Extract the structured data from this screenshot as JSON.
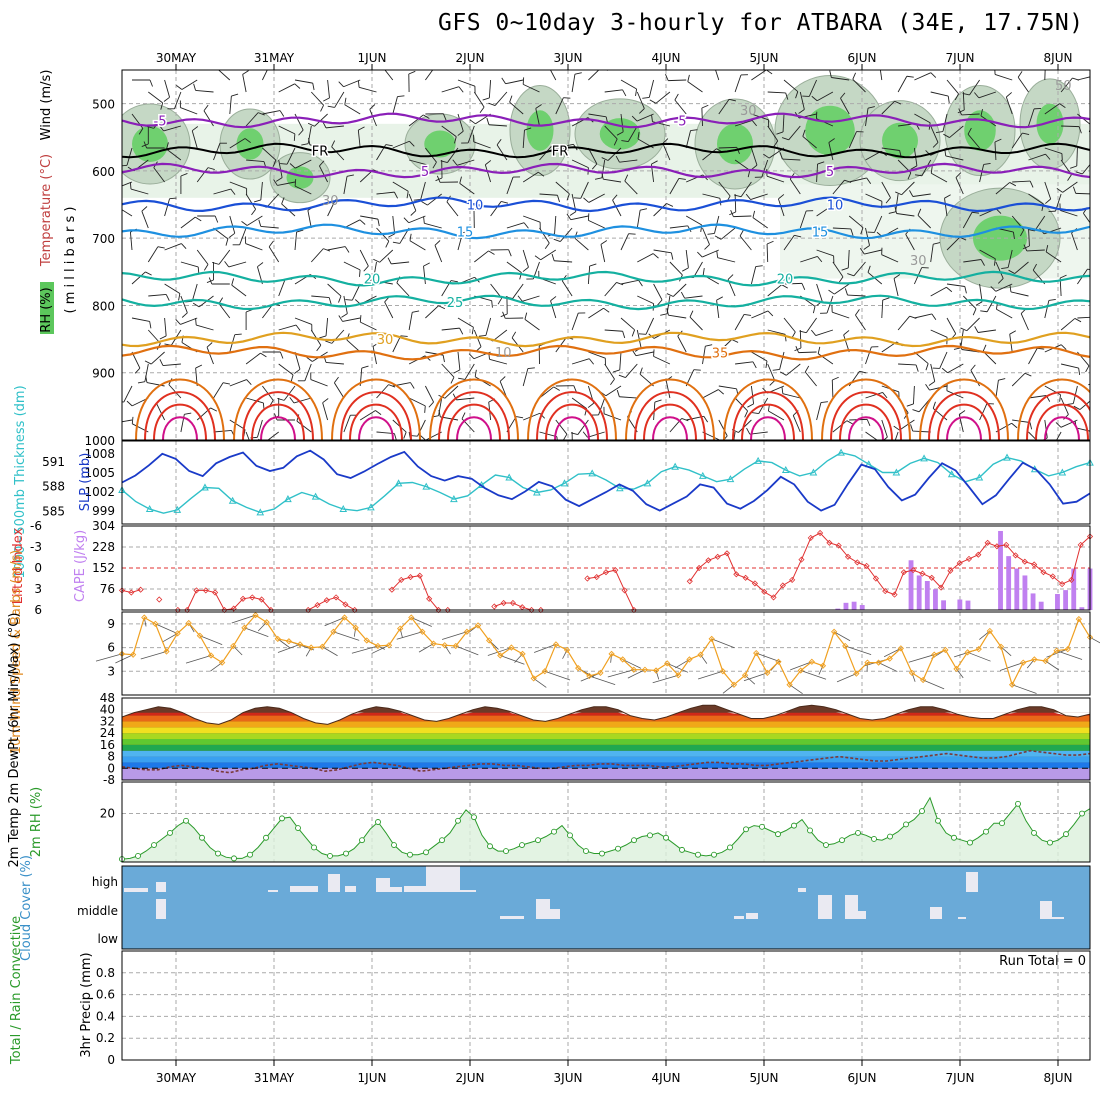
{
  "title": "GFS 0~10day 3-hourly for ATBARA (34E, 17.75N)",
  "dates": [
    "30MAY",
    "31MAY",
    "1JUN",
    "2JUN",
    "3JUN",
    "4JUN",
    "5JUN",
    "6JUN",
    "7JUN",
    "8JUN"
  ],
  "colors": {
    "purple": "#8a1fb8",
    "black": "#000000",
    "blue": "#1a4fd6",
    "lightblue": "#1e90e0",
    "teal": "#14b0a0",
    "orange": "#e0a020",
    "darkorange": "#e07010",
    "red": "#e03020",
    "magenta": "#d0108a",
    "slp": "#1a3ac8",
    "thick": "#30c0c8",
    "li": "#e03030",
    "cape": "#c080f0",
    "wind": "#f0a020",
    "rh": "#2a9a2a",
    "cloud": "#6aaad8"
  },
  "chart_data": [
    {
      "panel": "upper-air",
      "type": "contour",
      "ylabel_rh": "RH (%)",
      "ylabel_temp": "Temperature (°C)",
      "ylabel_wind": "Wind (m/s)",
      "ylabel_units": "( m i l l i b a r s )",
      "y_ticks": [
        "500",
        "600",
        "700",
        "800",
        "900",
        "1000"
      ],
      "ylim": [
        1000,
        450
      ],
      "isotherms": [
        {
          "label": "-5",
          "pressure": 525,
          "color": "purple"
        },
        {
          "label": "FR",
          "pressure": 570,
          "color": "black"
        },
        {
          "label": "5",
          "pressure": 600,
          "color": "purple"
        },
        {
          "label": "10",
          "pressure": 650,
          "color": "blue"
        },
        {
          "label": "15",
          "pressure": 690,
          "color": "lightblue"
        },
        {
          "label": "20",
          "pressure": 760,
          "color": "teal"
        },
        {
          "label": "25",
          "pressure": 795,
          "color": "teal"
        },
        {
          "label": "30",
          "pressure": 850,
          "color": "orange"
        },
        {
          "label": "35",
          "pressure": 870,
          "color": "darkorange"
        }
      ],
      "rh_labels": [
        "50",
        "30",
        "30",
        "30",
        "10"
      ]
    },
    {
      "panel": "slp-thickness",
      "type": "line",
      "ylabel_left": "1000~500mb Thickness (dm)",
      "ylabel_right": "SLP (mb)",
      "left_ticks": [
        "591",
        "588",
        "585"
      ],
      "right_ticks": [
        "1008",
        "1005",
        "1002",
        "999"
      ],
      "slp": [
        1003.5,
        1004.6,
        1006.2,
        1008,
        1007.2,
        1005.3,
        1004.5,
        1006.5,
        1007.5,
        1008.2,
        1006.1,
        1005.3,
        1005.8,
        1007.6,
        1008.5,
        1007.1,
        1004.8,
        1004.2,
        1005.2,
        1006.4,
        1007.5,
        1008.3,
        1006,
        1004.5,
        1003.8,
        1004.5,
        1004.1,
        1002.6,
        1001.5,
        1000.9,
        1002.1,
        1003.6,
        1002.9,
        1000.8,
        999.8,
        1000.9,
        1002,
        1003.2,
        1002.2,
        1000.1,
        999.1,
        1000.2,
        1001.3,
        1003.2,
        1002.7,
        1000.2,
        999.4,
        1000.6,
        1002.3,
        1004.4,
        1003.2,
        1000.5,
        999.1,
        1000,
        1003.3,
        1006.3,
        1005.6,
        1002.8,
        1000.7,
        1001.6,
        1004.2,
        1006.5,
        1005.4,
        1002.8,
        1000.1,
        1001.5,
        1004.1,
        1006.6,
        1005.5,
        1003.2,
        1000.2,
        1000.5,
        1001.8
      ],
      "thickness": [
        587.6,
        586.2,
        585.3,
        584.8,
        585.2,
        586.6,
        587.9,
        587.8,
        586.3,
        585.5,
        584.9,
        585.3,
        586.5,
        587.3,
        586.8,
        585.9,
        585.3,
        585.1,
        585.5,
        586.9,
        588.4,
        588.5,
        588,
        587.3,
        586.5,
        586.9,
        588.2,
        589.4,
        589.1,
        587.9,
        587.3,
        587.6,
        588.4,
        589.5,
        589.6,
        588.8,
        587.8,
        587.7,
        588.4,
        589.8,
        590.4,
        590,
        589.3,
        588.6,
        588.9,
        590.1,
        591.1,
        590.9,
        590,
        589.3,
        589.7,
        591.1,
        592.1,
        591.7,
        590.7,
        589.7,
        589.7,
        590.8,
        591.4,
        590.9,
        589.5,
        588.6,
        589.1,
        590.7,
        591.5,
        591.1,
        590.1,
        589.3,
        589.7,
        590.4,
        590.9
      ],
      "ylim_slp": [
        997,
        1010
      ],
      "ylim_thickness": [
        583.5,
        593.5
      ]
    },
    {
      "panel": "cape-li",
      "type": "bar+line",
      "ylabel_left": "Lifted Index",
      "ylabel_right": "CAPE (J/kg)",
      "li_ticks": [
        "-6",
        "-3",
        "0",
        "3",
        "6"
      ],
      "cape_ticks": [
        "304",
        "228",
        "152",
        "76"
      ],
      "li_range": [
        -6,
        6
      ],
      "cape_range": [
        0,
        304
      ],
      "lifted_index": [
        3.2,
        3.5,
        3.1,
        null,
        4.5,
        null,
        6,
        6,
        3.2,
        3.2,
        3.5,
        6,
        5.8,
        4.4,
        4.2,
        4.5,
        6,
        null,
        null,
        null,
        6,
        5.3,
        4.6,
        4.2,
        5.2,
        6,
        null,
        null,
        null,
        3.1,
        1.7,
        1.3,
        1.1,
        4.4,
        6,
        6,
        null,
        null,
        null,
        null,
        5.5,
        5,
        5,
        5.6,
        6,
        6,
        null,
        null,
        null,
        null,
        1.5,
        1.3,
        0.6,
        0.3,
        3.2,
        6,
        null,
        null,
        null,
        null,
        null,
        1.9,
        0,
        -1.1,
        -1.6,
        -2.1,
        0.9,
        1.4,
        2.2,
        3.4,
        4.2,
        2.5,
        1.7,
        -1.2,
        -4.3,
        -5,
        -3.6,
        -3.2,
        -1.6,
        -0.8,
        -0.3,
        1.5,
        3.3,
        3.8,
        0.6,
        0.3,
        0.8,
        1.4,
        2.8,
        0.4,
        -0.7,
        -1.3,
        -1.9,
        -3.6,
        -3.1,
        -3.3,
        -1.8,
        -0.9,
        -0.5,
        0.6,
        1.2,
        2.3,
        1.7,
        -3.3,
        -4.5
      ],
      "cape": [
        0,
        0,
        0,
        0,
        0,
        0,
        0,
        0,
        0,
        0,
        0,
        0,
        0,
        0,
        0,
        0,
        0,
        0,
        0,
        0,
        0,
        0,
        0,
        0,
        0,
        0,
        0,
        0,
        0,
        0,
        0,
        0,
        0,
        0,
        0,
        0,
        0,
        0,
        0,
        0,
        0,
        0,
        0,
        0,
        0,
        0,
        0,
        0,
        0,
        0,
        0,
        0,
        0,
        0,
        0,
        0,
        0,
        0,
        0,
        0,
        0,
        0,
        0,
        0,
        0,
        0,
        0,
        0,
        0,
        0,
        0,
        0,
        0,
        0,
        0,
        0,
        0,
        0,
        0,
        0,
        0,
        0,
        0,
        0,
        0,
        0,
        0,
        0,
        5,
        26,
        30,
        18,
        0,
        0,
        0,
        0,
        0,
        180,
        125,
        105,
        75,
        35,
        0,
        38,
        34,
        0,
        0,
        0,
        286,
        195,
        150,
        125,
        60,
        30,
        0,
        58,
        72,
        150,
        10,
        150
      ]
    },
    {
      "panel": "10m-wind",
      "type": "line",
      "ylabel": "10m Wind Speed & Barbs (m/s)",
      "y_ticks": [
        "9",
        "6",
        "3"
      ],
      "ylim": [
        0,
        10.5
      ],
      "speed": [
        5.2,
        5.1,
        9.8,
        9,
        5.5,
        7.8,
        9.1,
        7.5,
        5,
        4.1,
        6.2,
        8.5,
        10.1,
        9.2,
        7.1,
        6.8,
        6.4,
        6,
        6.1,
        8,
        9.8,
        8.5,
        6.9,
        6.2,
        6.3,
        8.4,
        9.8,
        8,
        6.5,
        6.3,
        6.2,
        8,
        8.8,
        6.9,
        5,
        6,
        5.2,
        2.1,
        3,
        6.4,
        5.7,
        3.4,
        2.4,
        2.8,
        5.2,
        4.5,
        3.2,
        3.2,
        3.1,
        4,
        2.5,
        4.5,
        5.1,
        7.1,
        3,
        1.3,
        2.5,
        5.3,
        2.8,
        4.2,
        1.3,
        3.1,
        4.2,
        3.7,
        8,
        6.2,
        2.7,
        4.1,
        4.1,
        4.6,
        5.9,
        2.8,
        1.9,
        5.1,
        5.7,
        3.3,
        5.4,
        5.8,
        8.1,
        6.1,
        1.3,
        4.1,
        4.5,
        4.3,
        5.6,
        5.8,
        9.6,
        7.3
      ]
    },
    {
      "panel": "2m-temp",
      "type": "area",
      "ylabel": "2m Temp 2m DewPt (6hr Min/Max) (°C)",
      "y_ticks": [
        "48",
        "40",
        "32",
        "24",
        "16",
        "8",
        "0",
        "-8"
      ],
      "ylim": [
        -8,
        48
      ],
      "bands": [
        0,
        4,
        8,
        12,
        16,
        20,
        24,
        28,
        32,
        36
      ],
      "temp_max": [
        35,
        38,
        40,
        42,
        41,
        38,
        34,
        31,
        30,
        33,
        38,
        41,
        42,
        41,
        38,
        34,
        31,
        30,
        33,
        37,
        40,
        42,
        41,
        39,
        36,
        33,
        32,
        34,
        37,
        40,
        42,
        41,
        39,
        36,
        33,
        32,
        34,
        37,
        40,
        42,
        42,
        40,
        36,
        34,
        33,
        35,
        38,
        41,
        43,
        43,
        40,
        37,
        34,
        34,
        36,
        39,
        42,
        43,
        42,
        40,
        37,
        34,
        33,
        34,
        37,
        40,
        42,
        42,
        40,
        37,
        35,
        34,
        34,
        37,
        40,
        42,
        42,
        40,
        36,
        35,
        37
      ],
      "dewpoint": [
        1,
        0,
        -1,
        -1,
        1,
        2,
        1,
        0,
        -2,
        -3,
        -1,
        0,
        2,
        3,
        2,
        1,
        0,
        -2,
        -1,
        1,
        3,
        4,
        3,
        2,
        0,
        -2,
        -1,
        0,
        1,
        2,
        3,
        3,
        2,
        2,
        1,
        0,
        0,
        1,
        2,
        2,
        3,
        3,
        2,
        2,
        2,
        1,
        1,
        2,
        3,
        4,
        4,
        3,
        3,
        2,
        2,
        3,
        4,
        5,
        6,
        7,
        8,
        7,
        6,
        5,
        5,
        6,
        7,
        8,
        9,
        10,
        9,
        8,
        7,
        7,
        8,
        10,
        12,
        11,
        10,
        9,
        9,
        10
      ]
    },
    {
      "panel": "2m-rh",
      "type": "area",
      "ylabel": "2m RH (%)",
      "y_ticks": [
        "20"
      ],
      "ylim": [
        0,
        33
      ],
      "rh": [
        1.2,
        1.5,
        2.5,
        4.5,
        7,
        9.5,
        12,
        15,
        17,
        14,
        10,
        6,
        3.5,
        2,
        1.5,
        1.5,
        3,
        6,
        10,
        14,
        18,
        18.5,
        14,
        10,
        6,
        3.5,
        2.5,
        2.5,
        3.5,
        5.5,
        9,
        13.5,
        16.5,
        12,
        7,
        4,
        3,
        3,
        4,
        6.5,
        9,
        12,
        17,
        21.5,
        18.5,
        11,
        6.5,
        4.5,
        4.5,
        5.5,
        7,
        8,
        9,
        10.5,
        12.5,
        15,
        11,
        7,
        4.5,
        3.5,
        3.5,
        4.5,
        5.5,
        7,
        9,
        10.5,
        11,
        12,
        10,
        7.5,
        5,
        4,
        3,
        2.5,
        3,
        4,
        6,
        9.5,
        13.5,
        15,
        14.5,
        13,
        11.5,
        13,
        15,
        17.5,
        13,
        9,
        7,
        7.5,
        9,
        11,
        12,
        11,
        9.5,
        9,
        10.5,
        12.5,
        15.5,
        17.5,
        21,
        26.5,
        17,
        12,
        10,
        9,
        8,
        10,
        12.5,
        16,
        16,
        20,
        24,
        17,
        12,
        9,
        8,
        9,
        11.5,
        15.5,
        20,
        22
      ]
    },
    {
      "panel": "cloud-cover",
      "type": "bar",
      "ylabel": "Cloud Cover (%)",
      "levels": [
        "high",
        "middle",
        "low"
      ]
    },
    {
      "panel": "precip",
      "type": "bar",
      "ylabel_left": "Total / Rain Convective",
      "ylabel": "3hr Precip (mm)",
      "y_ticks": [
        "0.8",
        "0.6",
        "0.4",
        "0.2",
        "0"
      ],
      "ylim": [
        0,
        1.0
      ],
      "run_total": "Run Total = 0",
      "values": []
    }
  ]
}
